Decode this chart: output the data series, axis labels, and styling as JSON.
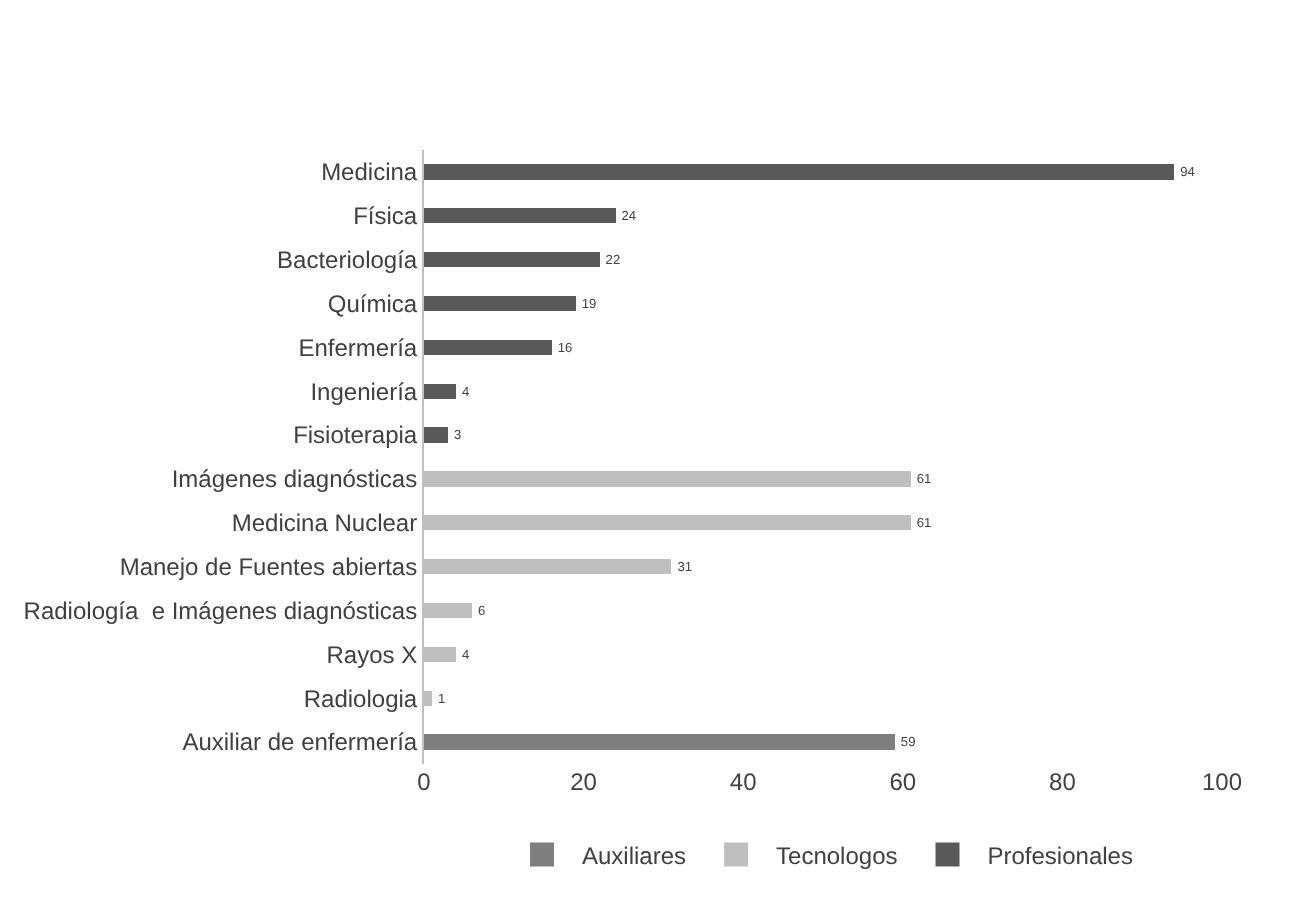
{
  "chart_data": {
    "type": "bar",
    "orientation": "horizontal",
    "stacked": true,
    "data_labels": true,
    "legend": "bottom",
    "categories": [
      "Medicina",
      "Física",
      "Bacteriología",
      "Química",
      "Enfermería",
      "Ingeniería",
      "Fisioterapia",
      "Imágenes diagnósticas",
      "Medicina Nuclear",
      "Manejo de Fuentes abiertas",
      "Radiología  e Imágenes diagnósticas",
      "Rayos X",
      "Radiologia",
      "Auxiliar de enfermería"
    ],
    "series": [
      {
        "name": "Auxiliares",
        "color": "#7f7f7f",
        "values": [
          null,
          null,
          null,
          null,
          null,
          null,
          null,
          null,
          null,
          null,
          null,
          null,
          null,
          59
        ]
      },
      {
        "name": "Tecnologos",
        "color": "#bfbfbf",
        "values": [
          null,
          null,
          null,
          null,
          null,
          null,
          null,
          61,
          61,
          31,
          6,
          4,
          1,
          null
        ]
      },
      {
        "name": "Profesionales",
        "color": "#595959",
        "values": [
          94,
          24,
          22,
          19,
          16,
          4,
          3,
          null,
          null,
          null,
          null,
          null,
          null,
          null
        ]
      }
    ],
    "xlim": [
      0,
      100
    ],
    "xticks": [
      0,
      20,
      40,
      60,
      80,
      100
    ]
  }
}
